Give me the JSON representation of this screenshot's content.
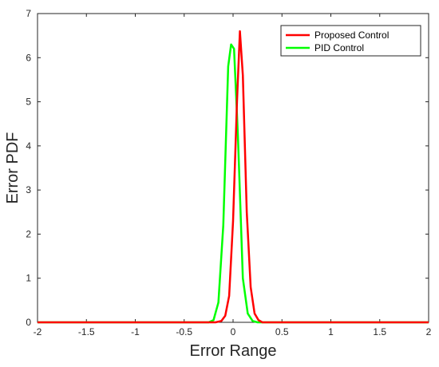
{
  "chart_data": {
    "type": "line",
    "title": "",
    "xlabel": "Error Range",
    "ylabel": "Error PDF",
    "xlim": [
      -2,
      2
    ],
    "ylim": [
      0,
      7
    ],
    "xticks": [
      "-2",
      "-1.5",
      "-1",
      "-0.5",
      "0",
      "0.5",
      "1",
      "1.5",
      "2"
    ],
    "yticks": [
      "0",
      "1",
      "2",
      "3",
      "4",
      "5",
      "6",
      "7"
    ],
    "grid": false,
    "legend_position": "top-right",
    "series": [
      {
        "name": "Proposed Control",
        "color": "#ff0000",
        "x": [
          -2,
          -0.18,
          -0.12,
          -0.08,
          -0.04,
          0,
          0.04,
          0.07,
          0.1,
          0.14,
          0.18,
          0.22,
          0.26,
          0.3,
          2
        ],
        "y": [
          0,
          0,
          0.03,
          0.15,
          0.6,
          2.3,
          5.0,
          6.6,
          5.6,
          2.5,
          0.8,
          0.2,
          0.05,
          0,
          0
        ]
      },
      {
        "name": "PID Control",
        "color": "#00ff00",
        "x": [
          -2,
          -0.25,
          -0.2,
          -0.15,
          -0.1,
          -0.05,
          -0.02,
          0.01,
          0.05,
          0.1,
          0.15,
          0.2,
          0.25,
          2
        ],
        "y": [
          0,
          0,
          0.05,
          0.45,
          2.2,
          5.8,
          6.3,
          6.2,
          4.2,
          1.0,
          0.2,
          0.03,
          0,
          0
        ]
      }
    ]
  }
}
